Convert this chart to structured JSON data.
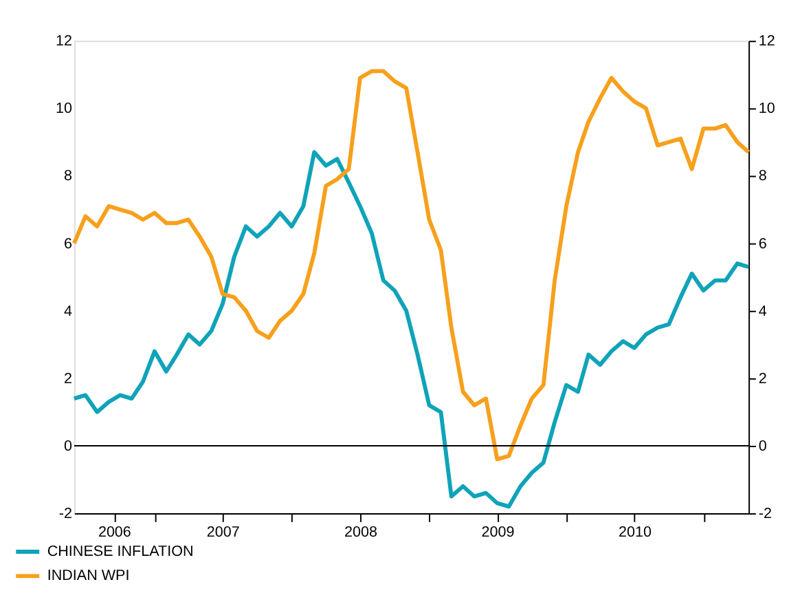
{
  "chart_data": {
    "type": "line",
    "x": [
      "2006-06",
      "2006-07",
      "2006-08",
      "2006-09",
      "2006-10",
      "2006-11",
      "2006-12",
      "2007-01",
      "2007-02",
      "2007-03",
      "2007-04",
      "2007-05",
      "2007-06",
      "2007-07",
      "2007-08",
      "2007-09",
      "2007-10",
      "2007-11",
      "2007-12",
      "2008-01",
      "2008-02",
      "2008-03",
      "2008-04",
      "2008-05",
      "2008-06",
      "2008-07",
      "2008-08",
      "2008-09",
      "2008-10",
      "2008-11",
      "2008-12",
      "2009-01",
      "2009-02",
      "2009-03",
      "2009-04",
      "2009-05",
      "2009-06",
      "2009-07",
      "2009-08",
      "2009-09",
      "2009-10",
      "2009-11",
      "2009-12",
      "2010-01",
      "2010-02",
      "2010-03",
      "2010-04",
      "2010-05",
      "2010-06",
      "2010-07",
      "2010-08",
      "2010-09",
      "2010-10",
      "2010-11",
      "2010-12",
      "2011-01",
      "2011-02",
      "2011-03",
      "2011-04",
      "2011-05"
    ],
    "series": [
      {
        "name": "CHINESE INFLATION",
        "color": "#0fa3b9",
        "values": [
          1.4,
          1.5,
          1.0,
          1.3,
          1.5,
          1.4,
          1.9,
          2.8,
          2.2,
          2.7,
          3.3,
          3.0,
          3.4,
          4.2,
          5.6,
          6.5,
          6.2,
          6.5,
          6.9,
          6.5,
          7.1,
          8.7,
          8.3,
          8.5,
          7.8,
          7.1,
          6.3,
          4.9,
          4.6,
          4.0,
          2.7,
          1.2,
          1.0,
          -1.5,
          -1.2,
          -1.5,
          -1.4,
          -1.7,
          -1.8,
          -1.2,
          -0.8,
          -0.5,
          0.7,
          1.8,
          1.6,
          2.7,
          2.4,
          2.8,
          3.1,
          2.9,
          3.3,
          3.5,
          3.6,
          4.4,
          5.1,
          4.6,
          4.9,
          4.9,
          5.4,
          5.3
        ]
      },
      {
        "name": "INDIAN WPI",
        "color": "#f7a01d",
        "values": [
          6.0,
          6.8,
          6.5,
          7.1,
          7.0,
          6.9,
          6.7,
          6.9,
          6.6,
          6.6,
          6.7,
          6.2,
          5.6,
          4.5,
          4.4,
          4.0,
          3.4,
          3.2,
          3.7,
          4.0,
          4.5,
          5.7,
          7.7,
          7.9,
          8.2,
          10.9,
          11.1,
          11.1,
          10.8,
          10.6,
          8.7,
          6.7,
          5.8,
          3.5,
          1.6,
          1.2,
          1.4,
          -0.4,
          -0.3,
          0.6,
          1.4,
          1.8,
          4.9,
          7.1,
          8.7,
          9.6,
          10.3,
          10.9,
          10.5,
          10.2,
          10.0,
          8.9,
          9.0,
          9.1,
          8.2,
          9.4,
          9.4,
          9.5,
          9.0,
          8.7
        ]
      }
    ],
    "xlim": [
      "2006-06",
      "2011-05"
    ],
    "xticks": [
      {
        "value": "2006-09-15",
        "label": "2006"
      },
      {
        "value": "2007-01",
        "label": null
      },
      {
        "value": "2007-07",
        "label": "2007"
      },
      {
        "value": "2008-01",
        "label": null
      },
      {
        "value": "2008-07",
        "label": "2008"
      },
      {
        "value": "2009-01",
        "label": null
      },
      {
        "value": "2009-07",
        "label": "2009"
      },
      {
        "value": "2010-01",
        "label": null
      },
      {
        "value": "2010-07",
        "label": "2010"
      },
      {
        "value": "2011-01",
        "label": null
      }
    ],
    "ylim": [
      -2,
      12
    ],
    "yticks": [
      -2,
      0,
      2,
      4,
      6,
      8,
      10,
      12
    ],
    "y2lim": [
      -2,
      12
    ],
    "y2ticks": [
      -2,
      0,
      2,
      4,
      6,
      8,
      10,
      12
    ],
    "ref_lines": [
      {
        "axis": "y",
        "value": 0,
        "color": "#000000"
      }
    ],
    "grid": false,
    "legend": "bottom left",
    "marker": "none",
    "line_style": "solid"
  }
}
